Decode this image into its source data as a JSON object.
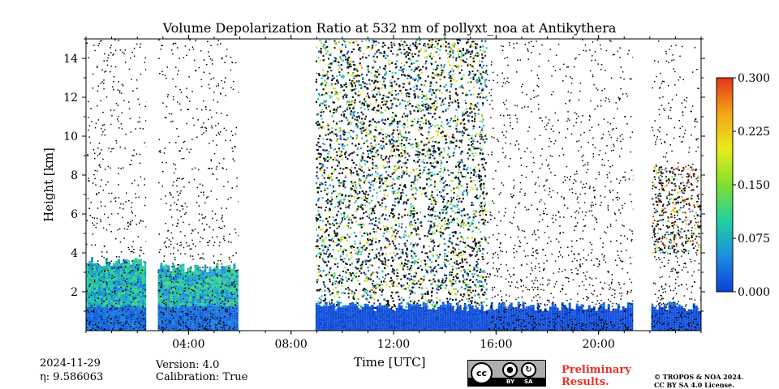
{
  "chart_data": {
    "type": "heatmap",
    "title": "Volume Depolarization Ratio at 532 nm of pollyxt_noa at Antikythera",
    "xlabel": "Time [UTC]",
    "ylabel": "Height [km]",
    "xlim_hours": [
      0,
      24
    ],
    "ylim_km": [
      0,
      15
    ],
    "x_ticks": [
      {
        "value": 4,
        "label": "04:00"
      },
      {
        "value": 8,
        "label": "08:00"
      },
      {
        "value": 12,
        "label": "12:00"
      },
      {
        "value": 16,
        "label": "16:00"
      },
      {
        "value": 20,
        "label": "20:00"
      }
    ],
    "y_ticks": [
      {
        "value": 2,
        "label": "2"
      },
      {
        "value": 4,
        "label": "4"
      },
      {
        "value": 6,
        "label": "6"
      },
      {
        "value": 8,
        "label": "8"
      },
      {
        "value": 10,
        "label": "10"
      },
      {
        "value": 12,
        "label": "12"
      },
      {
        "value": 14,
        "label": "14"
      }
    ],
    "colorbar": {
      "range": [
        0.0,
        0.3
      ],
      "ticks": [
        {
          "value": 0.0,
          "label": "0.000"
        },
        {
          "value": 0.075,
          "label": "0.075"
        },
        {
          "value": 0.15,
          "label": "0.150"
        },
        {
          "value": 0.225,
          "label": "0.225"
        },
        {
          "value": 0.3,
          "label": "0.300"
        }
      ],
      "colors": [
        "#0d3fd9",
        "#1d8fe0",
        "#22cfa0",
        "#7fe030",
        "#e8ec1a",
        "#f4a51a",
        "#e53515"
      ]
    },
    "data_gaps_hours": [
      [
        2.35,
        2.8
      ],
      [
        5.95,
        8.95
      ],
      [
        21.35,
        22.05
      ]
    ],
    "regions": [
      {
        "name": "aerosol-layer",
        "t": [
          0,
          2.35
        ],
        "base_km": 0.0,
        "top_km": 3.8,
        "depol": 0.09
      },
      {
        "name": "aerosol-layer",
        "t": [
          2.8,
          5.95
        ],
        "base_km": 0.0,
        "top_km": 3.5,
        "depol": 0.09
      },
      {
        "name": "noisy-daytime",
        "t": [
          8.95,
          15.6
        ],
        "base_km": 0.0,
        "top_km": 15.0,
        "depol": 0.12
      },
      {
        "name": "boundary-layer",
        "t": [
          8.95,
          24
        ],
        "base_km": 0.0,
        "top_km": 1.5,
        "depol": 0.03
      },
      {
        "name": "lofted-particles",
        "t": [
          22.05,
          24
        ],
        "base_km": 4.0,
        "top_km": 8.5,
        "depol": 0.2
      }
    ]
  },
  "meta": {
    "date": "2024-11-29",
    "eta": "η: 9.586063",
    "version": "Version: 4.0",
    "calibration": "Calibration: True",
    "preliminary_line1": "Preliminary",
    "preliminary_line2": "Results.",
    "copyright_line1": "© TROPOS & NOA 2024.",
    "copyright_line2": "CC BY SA 4.0 License.",
    "license_badge": {
      "cc": "cc",
      "by": "BY",
      "sa": "SA"
    }
  }
}
